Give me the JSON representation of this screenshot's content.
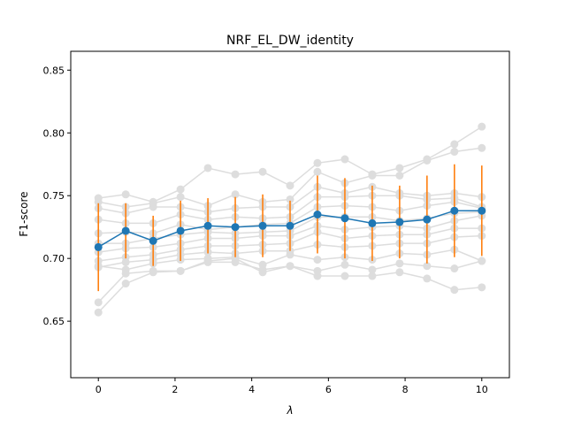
{
  "chart_data": {
    "type": "line",
    "title": "NRF_EL_DW_identity",
    "xlabel": "λ",
    "ylabel": "F1-score",
    "xlim": [
      -0.72,
      10.72
    ],
    "ylim": [
      0.605,
      0.865
    ],
    "x_ticks": [
      0,
      2,
      4,
      6,
      8,
      10
    ],
    "y_ticks": [
      0.65,
      0.7,
      0.75,
      0.8,
      0.85
    ],
    "x_tick_labels": [
      "0",
      "2",
      "4",
      "6",
      "8",
      "10"
    ],
    "y_tick_labels": [
      "0.65",
      "0.70",
      "0.75",
      "0.80",
      "0.85"
    ],
    "grid": false,
    "legend": false,
    "x": [
      0,
      0.714,
      1.429,
      2.143,
      2.857,
      3.571,
      4.286,
      5.0,
      5.714,
      6.429,
      7.143,
      7.857,
      8.571,
      9.286,
      10.0
    ],
    "mean_series": {
      "values": [
        0.709,
        0.722,
        0.714,
        0.722,
        0.726,
        0.725,
        0.726,
        0.726,
        0.735,
        0.732,
        0.728,
        0.729,
        0.731,
        0.738,
        0.738
      ],
      "error": [
        0.035,
        0.022,
        0.02,
        0.024,
        0.022,
        0.024,
        0.025,
        0.02,
        0.031,
        0.032,
        0.03,
        0.029,
        0.035,
        0.037,
        0.036
      ],
      "color": "#1f77b4",
      "error_color": "#ff7f0e"
    },
    "background_series_color": "#dddddd",
    "series": [
      {
        "values": [
          0.748,
          0.751,
          0.745,
          0.755,
          0.772,
          0.767,
          0.769,
          0.758,
          0.776,
          0.779,
          0.767,
          0.772,
          0.779,
          0.791,
          0.805
        ]
      },
      {
        "values": [
          0.745,
          0.741,
          0.744,
          0.749,
          0.742,
          0.751,
          0.745,
          0.747,
          0.769,
          0.76,
          0.766,
          0.766,
          0.778,
          0.785,
          0.788
        ]
      },
      {
        "values": [
          0.74,
          0.736,
          0.741,
          0.741,
          0.737,
          0.74,
          0.741,
          0.741,
          0.757,
          0.752,
          0.757,
          0.752,
          0.75,
          0.752,
          0.749
        ]
      },
      {
        "values": [
          0.731,
          0.728,
          0.728,
          0.735,
          0.731,
          0.733,
          0.732,
          0.733,
          0.749,
          0.749,
          0.75,
          0.75,
          0.747,
          0.748,
          0.741
        ]
      },
      {
        "values": [
          0.72,
          0.721,
          0.72,
          0.727,
          0.723,
          0.725,
          0.727,
          0.728,
          0.741,
          0.742,
          0.741,
          0.738,
          0.742,
          0.745,
          0.74
        ]
      },
      {
        "values": [
          0.712,
          0.712,
          0.716,
          0.719,
          0.721,
          0.72,
          0.721,
          0.722,
          0.733,
          0.733,
          0.733,
          0.73,
          0.732,
          0.736,
          0.737
        ]
      },
      {
        "values": [
          0.705,
          0.708,
          0.709,
          0.712,
          0.716,
          0.716,
          0.718,
          0.718,
          0.726,
          0.723,
          0.725,
          0.726,
          0.724,
          0.73,
          0.734
        ]
      },
      {
        "values": [
          0.698,
          0.701,
          0.703,
          0.707,
          0.71,
          0.71,
          0.711,
          0.712,
          0.721,
          0.716,
          0.718,
          0.719,
          0.719,
          0.724,
          0.724
        ]
      },
      {
        "values": [
          0.693,
          0.697,
          0.699,
          0.703,
          0.705,
          0.704,
          0.706,
          0.706,
          0.711,
          0.709,
          0.71,
          0.712,
          0.712,
          0.717,
          0.718
        ]
      },
      {
        "values": [
          0.694,
          0.691,
          0.696,
          0.699,
          0.7,
          0.701,
          0.695,
          0.703,
          0.699,
          0.701,
          0.699,
          0.704,
          0.703,
          0.707,
          0.698
        ]
      },
      {
        "values": [
          0.665,
          0.688,
          0.69,
          0.69,
          0.697,
          0.697,
          0.691,
          0.694,
          0.69,
          0.695,
          0.691,
          0.696,
          0.694,
          0.692,
          0.698
        ]
      },
      {
        "values": [
          0.657,
          0.68,
          0.689,
          0.69,
          0.698,
          0.7,
          0.689,
          0.694,
          0.686,
          0.686,
          0.686,
          0.689,
          0.684,
          0.675,
          0.677
        ]
      }
    ]
  }
}
